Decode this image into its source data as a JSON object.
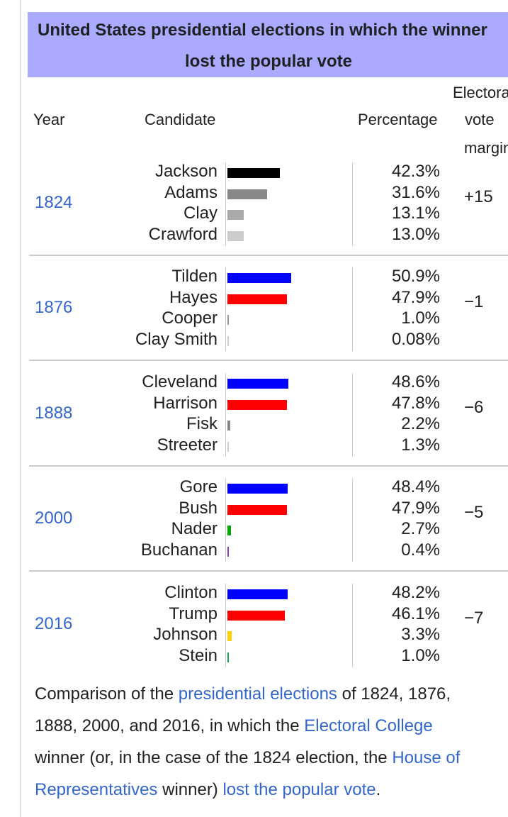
{
  "table": {
    "title_line1": "United States presidential elections in which the winner",
    "title_line2": "lost the popular vote",
    "headers": {
      "year": "Year",
      "candidate": "Candidate",
      "percentage": "Percentage",
      "margin_line1": "Electoral",
      "margin_line2": "vote",
      "margin_line3": "margin"
    },
    "elections": [
      {
        "year": "1824",
        "margin": "+15",
        "candidates": [
          {
            "name": "Jackson",
            "pct": "42.3%",
            "value": 42.3,
            "color": "#000000"
          },
          {
            "name": "Adams",
            "pct": "31.6%",
            "value": 31.6,
            "color": "#888888"
          },
          {
            "name": "Clay",
            "pct": "13.1%",
            "value": 13.1,
            "color": "#aaaaaa"
          },
          {
            "name": "Crawford",
            "pct": "13.0%",
            "value": 13.0,
            "color": "#cccccc"
          }
        ]
      },
      {
        "year": "1876",
        "margin": "−1",
        "candidates": [
          {
            "name": "Tilden",
            "pct": "50.9%",
            "value": 50.9,
            "color": "#0000ff"
          },
          {
            "name": "Hayes",
            "pct": "47.9%",
            "value": 47.9,
            "color": "#ff0000"
          },
          {
            "name": "Cooper",
            "pct": "1.0%",
            "value": 1.0,
            "color": "#999999"
          },
          {
            "name": "Clay Smith",
            "pct": "0.08%",
            "value": 0.08,
            "color": "#cccccc"
          }
        ]
      },
      {
        "year": "1888",
        "margin": "−6",
        "candidates": [
          {
            "name": "Cleveland",
            "pct": "48.6%",
            "value": 48.6,
            "color": "#0000ff"
          },
          {
            "name": "Harrison",
            "pct": "47.8%",
            "value": 47.8,
            "color": "#ff0000"
          },
          {
            "name": "Fisk",
            "pct": "2.2%",
            "value": 2.2,
            "color": "#888888"
          },
          {
            "name": "Streeter",
            "pct": "1.3%",
            "value": 1.3,
            "color": "#cccccc"
          }
        ]
      },
      {
        "year": "2000",
        "margin": "−5",
        "candidates": [
          {
            "name": "Gore",
            "pct": "48.4%",
            "value": 48.4,
            "color": "#0000ff"
          },
          {
            "name": "Bush",
            "pct": "47.9%",
            "value": 47.9,
            "color": "#ff0000"
          },
          {
            "name": "Nader",
            "pct": "2.7%",
            "value": 2.7,
            "color": "#00aa00"
          },
          {
            "name": "Buchanan",
            "pct": "0.4%",
            "value": 0.4,
            "color": "#8844aa"
          }
        ]
      },
      {
        "year": "2016",
        "margin": "−7",
        "candidates": [
          {
            "name": "Clinton",
            "pct": "48.2%",
            "value": 48.2,
            "color": "#0000ff"
          },
          {
            "name": "Trump",
            "pct": "46.1%",
            "value": 46.1,
            "color": "#ff0000"
          },
          {
            "name": "Johnson",
            "pct": "3.3%",
            "value": 3.3,
            "color": "#fed105"
          },
          {
            "name": "Stein",
            "pct": "1.0%",
            "value": 1.0,
            "color": "#17aa5c"
          }
        ]
      }
    ]
  },
  "caption": {
    "p1": "Comparison of the ",
    "link1": "presidential elections",
    "p2": " of 1824, 1876,",
    "line2a": "1888, 2000, and 2016, in which the ",
    "link2": "Electoral College",
    "line3a": "winner (or, in the case of the 1824 election, the ",
    "link3": "House of",
    "link3b": "Representatives",
    "p4": " winner) ",
    "link4": "lost the popular vote",
    "p5": "."
  }
}
